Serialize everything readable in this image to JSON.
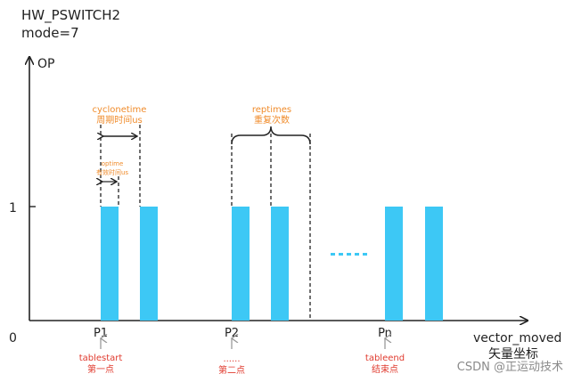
{
  "header": {
    "line1": "HW_PSWITCH2",
    "line2": "mode=7"
  },
  "axes": {
    "y_label": "OP",
    "x_label": "vector_moved",
    "x_label_cn": "矢量坐标",
    "origin": "0",
    "y_tick": "1"
  },
  "points": {
    "p1": "P1",
    "p2": "P2",
    "pn": "Pn"
  },
  "annotations": {
    "cyclonetime_en": "cyclonetime",
    "cyclonetime_cn": "周期时间us",
    "optime_en": "optime",
    "optime_cn": "有效时间us",
    "reptimes_en": "reptimes",
    "reptimes_cn": "重复次数",
    "tablestart_en": "tablestart",
    "tablestart_cn": "第一点",
    "second_dots": "......",
    "second_cn": "第二点",
    "tableend_en": "tableend",
    "tableend_cn": "结束点"
  },
  "watermark": "CSDN @正运动技术",
  "colors": {
    "pulse": "#3dc8f5",
    "accent_orange": "#f08c2c",
    "accent_red": "#e03a2e",
    "axis": "#222222"
  }
}
